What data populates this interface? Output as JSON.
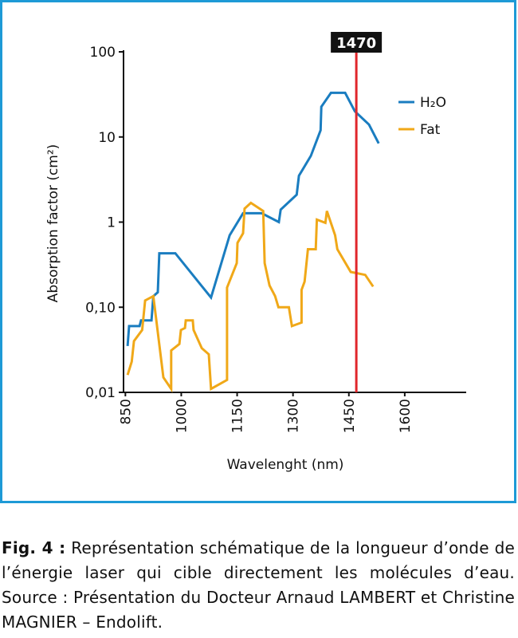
{
  "chart_data": {
    "type": "line",
    "ylabel": "Absorption factor (cm²)",
    "xlabel": "Wavelenght (nm)",
    "xlim": [
      845,
      1765
    ],
    "xticks": [
      850,
      1000,
      1150,
      1300,
      1450,
      1600
    ],
    "ylim": [
      0.01,
      100
    ],
    "yscale": "log",
    "yticks": [
      {
        "value": 0.01,
        "label": "0,01"
      },
      {
        "value": 0.1,
        "label": "0,10"
      },
      1,
      10,
      100
    ],
    "vline": {
      "value": 1470,
      "color": "#e0262b"
    },
    "legend": "top-right",
    "series": [
      {
        "name": "H₂O",
        "color": "#1a7dc0",
        "x": [
          856,
          860,
          888,
          892,
          920,
          925,
          937,
          941,
          984,
          1080,
          1130,
          1166,
          1216,
          1262,
          1267,
          1310,
          1316,
          1348,
          1374,
          1376,
          1402,
          1440,
          1466,
          1504,
          1530
        ],
        "values": [
          0.035,
          0.06,
          0.06,
          0.07,
          0.07,
          0.135,
          0.15,
          0.43,
          0.43,
          0.13,
          0.7,
          1.27,
          1.27,
          1.0,
          1.4,
          2.1,
          3.5,
          6,
          12,
          22.6,
          33,
          33,
          20,
          14,
          8.4
        ]
      },
      {
        "name": "Fat",
        "color": "#f0a818",
        "x": [
          856,
          867,
          873,
          895,
          903,
          925,
          952,
          973,
          973,
          995,
          999,
          1010,
          1012,
          1031,
          1033,
          1055,
          1074,
          1080,
          1123,
          1123,
          1149,
          1151,
          1166,
          1170,
          1187,
          1220,
          1224,
          1237,
          1252,
          1261,
          1289,
          1297,
          1323,
          1323,
          1331,
          1340,
          1361,
          1364,
          1387,
          1391,
          1413,
          1419,
          1455,
          1494,
          1515
        ],
        "values": [
          0.016,
          0.023,
          0.04,
          0.054,
          0.12,
          0.135,
          0.015,
          0.011,
          0.031,
          0.037,
          0.054,
          0.057,
          0.07,
          0.07,
          0.054,
          0.033,
          0.028,
          0.011,
          0.014,
          0.17,
          0.33,
          0.57,
          0.74,
          1.44,
          1.68,
          1.35,
          0.33,
          0.18,
          0.135,
          0.1,
          0.1,
          0.06,
          0.066,
          0.16,
          0.2,
          0.48,
          0.48,
          1.07,
          0.98,
          1.35,
          0.7,
          0.48,
          0.26,
          0.24,
          0.175
        ]
      }
    ]
  },
  "caption": {
    "label": "Fig. 4 :",
    "text": "Représentation schématique de la longueur d’onde de l’énergie laser qui cible directement les molécules d’eau. Source : Présentation du Docteur Arnaud LAMBERT et Christine MAGNIER – Endolift."
  }
}
